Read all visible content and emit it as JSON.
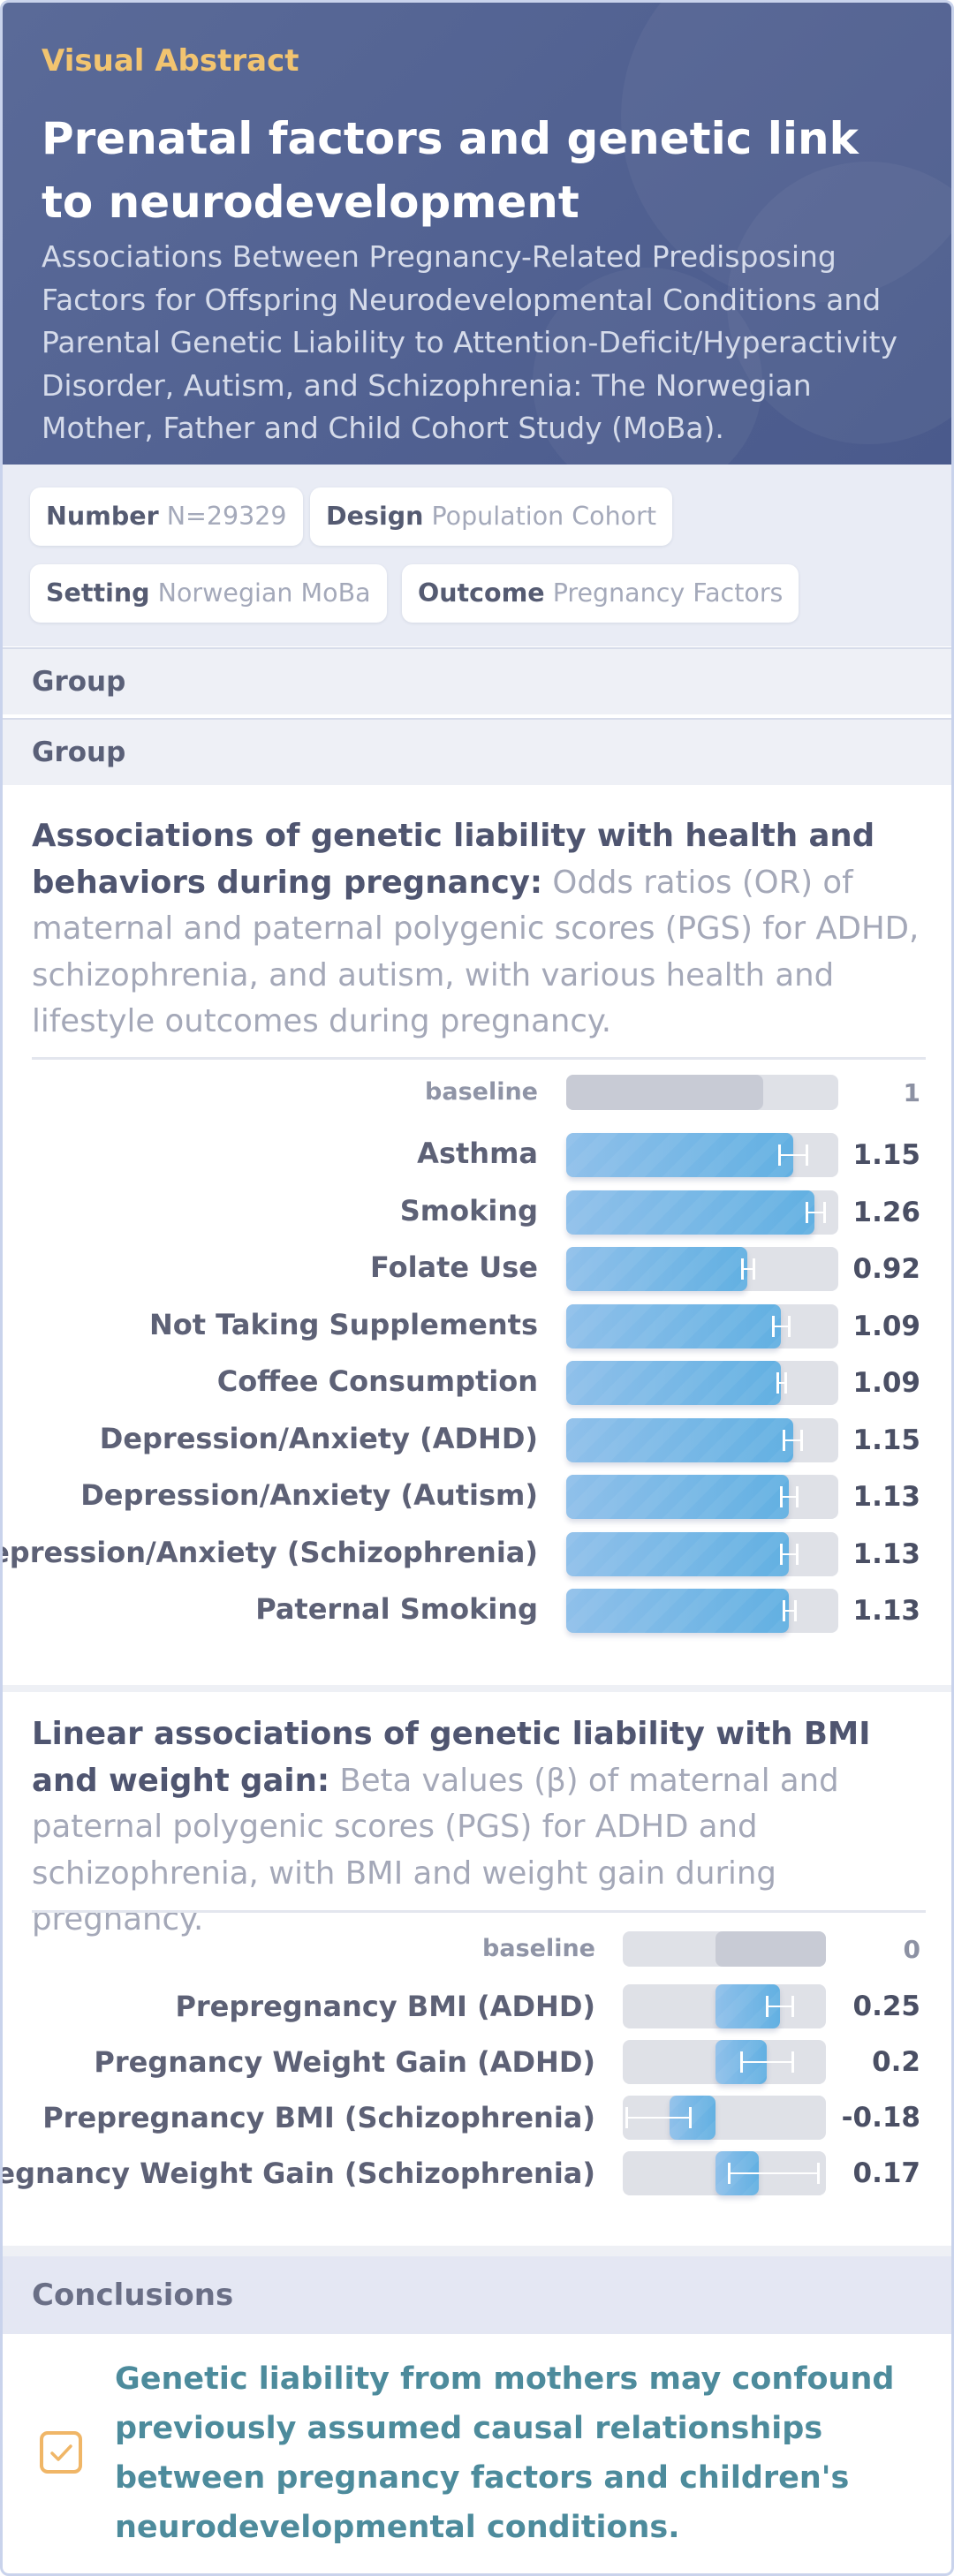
{
  "header": {
    "eyebrow": "Visual Abstract",
    "title": "Prenatal factors and genetic link to neurodevelopment",
    "subtitle": "Associations Between Pregnancy-Related Predisposing Factors for Offspring Neurodevelopmental Conditions and Parental Genetic Liability to Attention-Deficit/Hyperactivity Disorder, Autism, and Schizophrenia: The Norwegian Mother, Father and Child Cohort Study (MoBa)."
  },
  "chips": [
    {
      "key": "Number",
      "value": "N=29329"
    },
    {
      "key": "Design",
      "value": "Population Cohort"
    },
    {
      "key": "Setting",
      "value": "Norwegian MoBa"
    },
    {
      "key": "Outcome",
      "value": "Pregnancy Factors"
    }
  ],
  "groups": [
    "Group",
    "Group"
  ],
  "section1": {
    "lead": "Associations of genetic liability with health and behaviors during pregnancy:",
    "desc": "Odds ratios (OR) of maternal and paternal polygenic scores (PGS) for ADHD, schizophrenia, and autism, with various health and lifestyle outcomes during pregnancy.",
    "baseline": {
      "label": "baseline",
      "value": 1
    },
    "rows": [
      {
        "label": "Asthma",
        "value": 1.15,
        "ci": [
          1.08,
          1.22
        ]
      },
      {
        "label": "Smoking",
        "value": 1.26,
        "ci": [
          1.22,
          1.31
        ]
      },
      {
        "label": "Folate Use",
        "value": 0.92,
        "ci": [
          0.89,
          0.95
        ]
      },
      {
        "label": "Not Taking Supplements",
        "value": 1.09,
        "ci": [
          1.05,
          1.13
        ]
      },
      {
        "label": "Coffee Consumption",
        "value": 1.09,
        "ci": [
          1.07,
          1.11
        ]
      },
      {
        "label": "Depression/Anxiety (ADHD)",
        "value": 1.15,
        "ci": [
          1.1,
          1.19
        ]
      },
      {
        "label": "Depression/Anxiety (Autism)",
        "value": 1.13,
        "ci": [
          1.09,
          1.17
        ]
      },
      {
        "label": "Depression/Anxiety (Schizophrenia)",
        "value": 1.13,
        "ci": [
          1.09,
          1.17
        ]
      },
      {
        "label": "Paternal Smoking",
        "value": 1.13,
        "ci": [
          1.1,
          1.16
        ]
      }
    ]
  },
  "section2": {
    "lead": "Linear associations of genetic liability with BMI and weight gain:",
    "desc": "Beta values (β) of maternal and paternal polygenic scores (PGS) for ADHD and schizophrenia, with BMI and weight gain during pregnancy.",
    "baseline": {
      "label": "baseline",
      "value": 0
    },
    "rows": [
      {
        "label": "Prepregnancy BMI (ADHD)",
        "value": 0.25,
        "ci": [
          0.2,
          0.3
        ]
      },
      {
        "label": "Pregnancy Weight Gain (ADHD)",
        "value": 0.2,
        "ci": [
          0.1,
          0.3
        ]
      },
      {
        "label": "Prepregnancy BMI (Schizophrenia)",
        "value": -0.18,
        "ci": [
          -0.35,
          -0.1
        ]
      },
      {
        "label": "Pregnancy Weight Gain (Schizophrenia)",
        "value": 0.17,
        "ci": [
          0.05,
          0.4
        ]
      }
    ]
  },
  "conclusions": {
    "heading": "Conclusions",
    "text": "Genetic liability from mothers may confound previously assumed causal relationships between pregnancy factors and children's neurodevelopmental conditions."
  },
  "colors": {
    "header": "#4f5f90",
    "accent": "#f2c470",
    "bar": "#6ab3e4",
    "conclusion_text": "#4d8b9c"
  },
  "icons": {
    "conclusion": "check-box-icon"
  }
}
